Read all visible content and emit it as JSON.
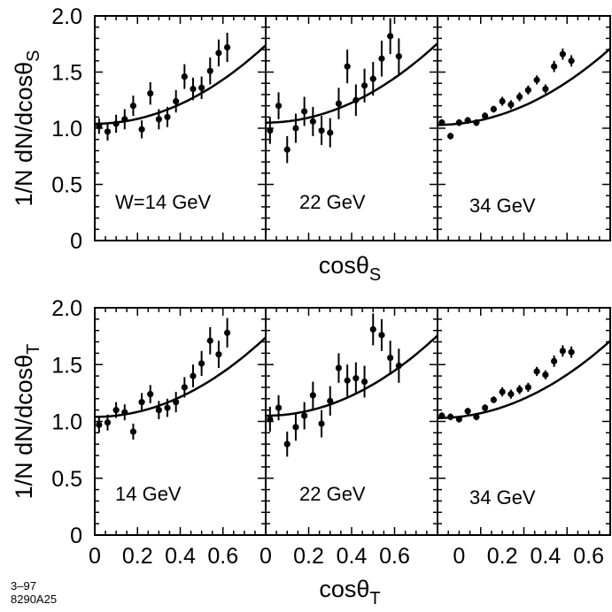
{
  "figure": {
    "footer_line1": "3–97",
    "footer_line2": "8290A25"
  },
  "chart_data": [
    {
      "type": "scatter",
      "row": "S",
      "ylabel": "1/N dN/dcosθ",
      "ylabel_sub": "S",
      "xlabel": "cosθ",
      "xlabel_sub": "S",
      "ylim": [
        0,
        2.0
      ],
      "yticks": [
        "0",
        "0.5",
        "1.0",
        "1.5",
        "2.0"
      ],
      "xlim": [
        0,
        0.8
      ],
      "panels": [
        {
          "label": "W=14 GeV",
          "fit": {
            "a": 1.04,
            "b": 1.05
          },
          "points": [
            {
              "x": 0.02,
              "y": 1.02,
              "err": 0.07
            },
            {
              "x": 0.06,
              "y": 0.97,
              "err": 0.08
            },
            {
              "x": 0.1,
              "y": 1.04,
              "err": 0.08
            },
            {
              "x": 0.14,
              "y": 1.08,
              "err": 0.09
            },
            {
              "x": 0.18,
              "y": 1.2,
              "err": 0.09
            },
            {
              "x": 0.22,
              "y": 0.99,
              "err": 0.08
            },
            {
              "x": 0.26,
              "y": 1.31,
              "err": 0.1
            },
            {
              "x": 0.3,
              "y": 1.08,
              "err": 0.09
            },
            {
              "x": 0.34,
              "y": 1.1,
              "err": 0.09
            },
            {
              "x": 0.38,
              "y": 1.24,
              "err": 0.1
            },
            {
              "x": 0.42,
              "y": 1.46,
              "err": 0.11
            },
            {
              "x": 0.46,
              "y": 1.35,
              "err": 0.1
            },
            {
              "x": 0.5,
              "y": 1.36,
              "err": 0.1
            },
            {
              "x": 0.54,
              "y": 1.51,
              "err": 0.12
            },
            {
              "x": 0.58,
              "y": 1.67,
              "err": 0.12
            },
            {
              "x": 0.62,
              "y": 1.72,
              "err": 0.13
            }
          ]
        },
        {
          "label": "22 GeV",
          "fit": {
            "a": 1.05,
            "b": 1.05
          },
          "points": [
            {
              "x": 0.02,
              "y": 0.98,
              "err": 0.12
            },
            {
              "x": 0.06,
              "y": 1.2,
              "err": 0.12
            },
            {
              "x": 0.1,
              "y": 0.81,
              "err": 0.12
            },
            {
              "x": 0.14,
              "y": 1.0,
              "err": 0.13
            },
            {
              "x": 0.18,
              "y": 1.15,
              "err": 0.13
            },
            {
              "x": 0.22,
              "y": 1.06,
              "err": 0.13
            },
            {
              "x": 0.26,
              "y": 0.98,
              "err": 0.13
            },
            {
              "x": 0.3,
              "y": 0.96,
              "err": 0.13
            },
            {
              "x": 0.34,
              "y": 1.22,
              "err": 0.14
            },
            {
              "x": 0.38,
              "y": 1.55,
              "err": 0.15
            },
            {
              "x": 0.42,
              "y": 1.25,
              "err": 0.14
            },
            {
              "x": 0.46,
              "y": 1.38,
              "err": 0.15
            },
            {
              "x": 0.5,
              "y": 1.44,
              "err": 0.15
            },
            {
              "x": 0.54,
              "y": 1.62,
              "err": 0.16
            },
            {
              "x": 0.58,
              "y": 1.82,
              "err": 0.16
            },
            {
              "x": 0.62,
              "y": 1.64,
              "err": 0.16
            }
          ]
        },
        {
          "label": "34 GeV",
          "fit": {
            "a": 1.03,
            "b": 1.03
          },
          "points": [
            {
              "x": 0.02,
              "y": 1.05,
              "err": 0.03
            },
            {
              "x": 0.06,
              "y": 0.93,
              "err": 0.03
            },
            {
              "x": 0.1,
              "y": 1.05,
              "err": 0.03
            },
            {
              "x": 0.14,
              "y": 1.07,
              "err": 0.03
            },
            {
              "x": 0.18,
              "y": 1.05,
              "err": 0.03
            },
            {
              "x": 0.22,
              "y": 1.11,
              "err": 0.03
            },
            {
              "x": 0.26,
              "y": 1.17,
              "err": 0.03
            },
            {
              "x": 0.3,
              "y": 1.24,
              "err": 0.04
            },
            {
              "x": 0.34,
              "y": 1.21,
              "err": 0.04
            },
            {
              "x": 0.38,
              "y": 1.28,
              "err": 0.04
            },
            {
              "x": 0.42,
              "y": 1.34,
              "err": 0.04
            },
            {
              "x": 0.46,
              "y": 1.43,
              "err": 0.04
            },
            {
              "x": 0.5,
              "y": 1.35,
              "err": 0.04
            },
            {
              "x": 0.54,
              "y": 1.55,
              "err": 0.05
            },
            {
              "x": 0.58,
              "y": 1.66,
              "err": 0.05
            },
            {
              "x": 0.62,
              "y": 1.6,
              "err": 0.05
            }
          ]
        }
      ]
    },
    {
      "type": "scatter",
      "row": "T",
      "ylabel": "1/N dN/dcosθ",
      "ylabel_sub": "T",
      "xlabel": "cosθ",
      "xlabel_sub": "T",
      "ylim": [
        0,
        2.0
      ],
      "yticks": [
        "0",
        "0.5",
        "1.0",
        "1.5",
        "2.0"
      ],
      "xlim": [
        0,
        0.8
      ],
      "xticks_panels": [
        [
          "0",
          "0.2",
          "0.4",
          "0.6"
        ],
        [
          "0",
          "0.2",
          "0.4",
          "0.6"
        ],
        [
          "0",
          "0.2",
          "0.4",
          "0.6"
        ]
      ],
      "xtick_values": [
        0,
        0.2,
        0.4,
        0.6
      ],
      "panels": [
        {
          "label": "14 GeV",
          "fit": {
            "a": 1.04,
            "b": 1.05
          },
          "points": [
            {
              "x": 0.02,
              "y": 0.97,
              "err": 0.07
            },
            {
              "x": 0.06,
              "y": 0.99,
              "err": 0.07
            },
            {
              "x": 0.1,
              "y": 1.1,
              "err": 0.07
            },
            {
              "x": 0.14,
              "y": 1.08,
              "err": 0.07
            },
            {
              "x": 0.18,
              "y": 0.91,
              "err": 0.07
            },
            {
              "x": 0.22,
              "y": 1.17,
              "err": 0.08
            },
            {
              "x": 0.26,
              "y": 1.24,
              "err": 0.08
            },
            {
              "x": 0.3,
              "y": 1.1,
              "err": 0.08
            },
            {
              "x": 0.34,
              "y": 1.12,
              "err": 0.08
            },
            {
              "x": 0.38,
              "y": 1.17,
              "err": 0.09
            },
            {
              "x": 0.42,
              "y": 1.3,
              "err": 0.09
            },
            {
              "x": 0.46,
              "y": 1.4,
              "err": 0.1
            },
            {
              "x": 0.5,
              "y": 1.51,
              "err": 0.11
            },
            {
              "x": 0.54,
              "y": 1.71,
              "err": 0.12
            },
            {
              "x": 0.58,
              "y": 1.59,
              "err": 0.12
            },
            {
              "x": 0.62,
              "y": 1.78,
              "err": 0.13
            }
          ]
        },
        {
          "label": "22 GeV",
          "fit": {
            "a": 1.05,
            "b": 1.05
          },
          "points": [
            {
              "x": 0.02,
              "y": 1.02,
              "err": 0.11
            },
            {
              "x": 0.06,
              "y": 1.12,
              "err": 0.11
            },
            {
              "x": 0.1,
              "y": 0.8,
              "err": 0.11
            },
            {
              "x": 0.14,
              "y": 0.95,
              "err": 0.12
            },
            {
              "x": 0.18,
              "y": 1.05,
              "err": 0.12
            },
            {
              "x": 0.22,
              "y": 1.23,
              "err": 0.12
            },
            {
              "x": 0.26,
              "y": 0.98,
              "err": 0.12
            },
            {
              "x": 0.3,
              "y": 1.18,
              "err": 0.13
            },
            {
              "x": 0.34,
              "y": 1.47,
              "err": 0.13
            },
            {
              "x": 0.38,
              "y": 1.36,
              "err": 0.14
            },
            {
              "x": 0.42,
              "y": 1.38,
              "err": 0.14
            },
            {
              "x": 0.46,
              "y": 1.35,
              "err": 0.14
            },
            {
              "x": 0.5,
              "y": 1.81,
              "err": 0.14
            },
            {
              "x": 0.54,
              "y": 1.76,
              "err": 0.14
            },
            {
              "x": 0.58,
              "y": 1.56,
              "err": 0.15
            },
            {
              "x": 0.62,
              "y": 1.49,
              "err": 0.15
            }
          ]
        },
        {
          "label": "34 GeV",
          "fit": {
            "a": 1.03,
            "b": 1.03
          },
          "points": [
            {
              "x": 0.02,
              "y": 1.05,
              "err": 0.03
            },
            {
              "x": 0.06,
              "y": 1.04,
              "err": 0.03
            },
            {
              "x": 0.1,
              "y": 1.02,
              "err": 0.03
            },
            {
              "x": 0.14,
              "y": 1.09,
              "err": 0.03
            },
            {
              "x": 0.18,
              "y": 1.04,
              "err": 0.03
            },
            {
              "x": 0.22,
              "y": 1.12,
              "err": 0.03
            },
            {
              "x": 0.26,
              "y": 1.19,
              "err": 0.03
            },
            {
              "x": 0.3,
              "y": 1.26,
              "err": 0.04
            },
            {
              "x": 0.34,
              "y": 1.24,
              "err": 0.04
            },
            {
              "x": 0.38,
              "y": 1.28,
              "err": 0.04
            },
            {
              "x": 0.42,
              "y": 1.3,
              "err": 0.04
            },
            {
              "x": 0.46,
              "y": 1.44,
              "err": 0.04
            },
            {
              "x": 0.5,
              "y": 1.41,
              "err": 0.04
            },
            {
              "x": 0.54,
              "y": 1.53,
              "err": 0.05
            },
            {
              "x": 0.58,
              "y": 1.62,
              "err": 0.05
            },
            {
              "x": 0.62,
              "y": 1.61,
              "err": 0.05
            }
          ]
        }
      ]
    }
  ]
}
